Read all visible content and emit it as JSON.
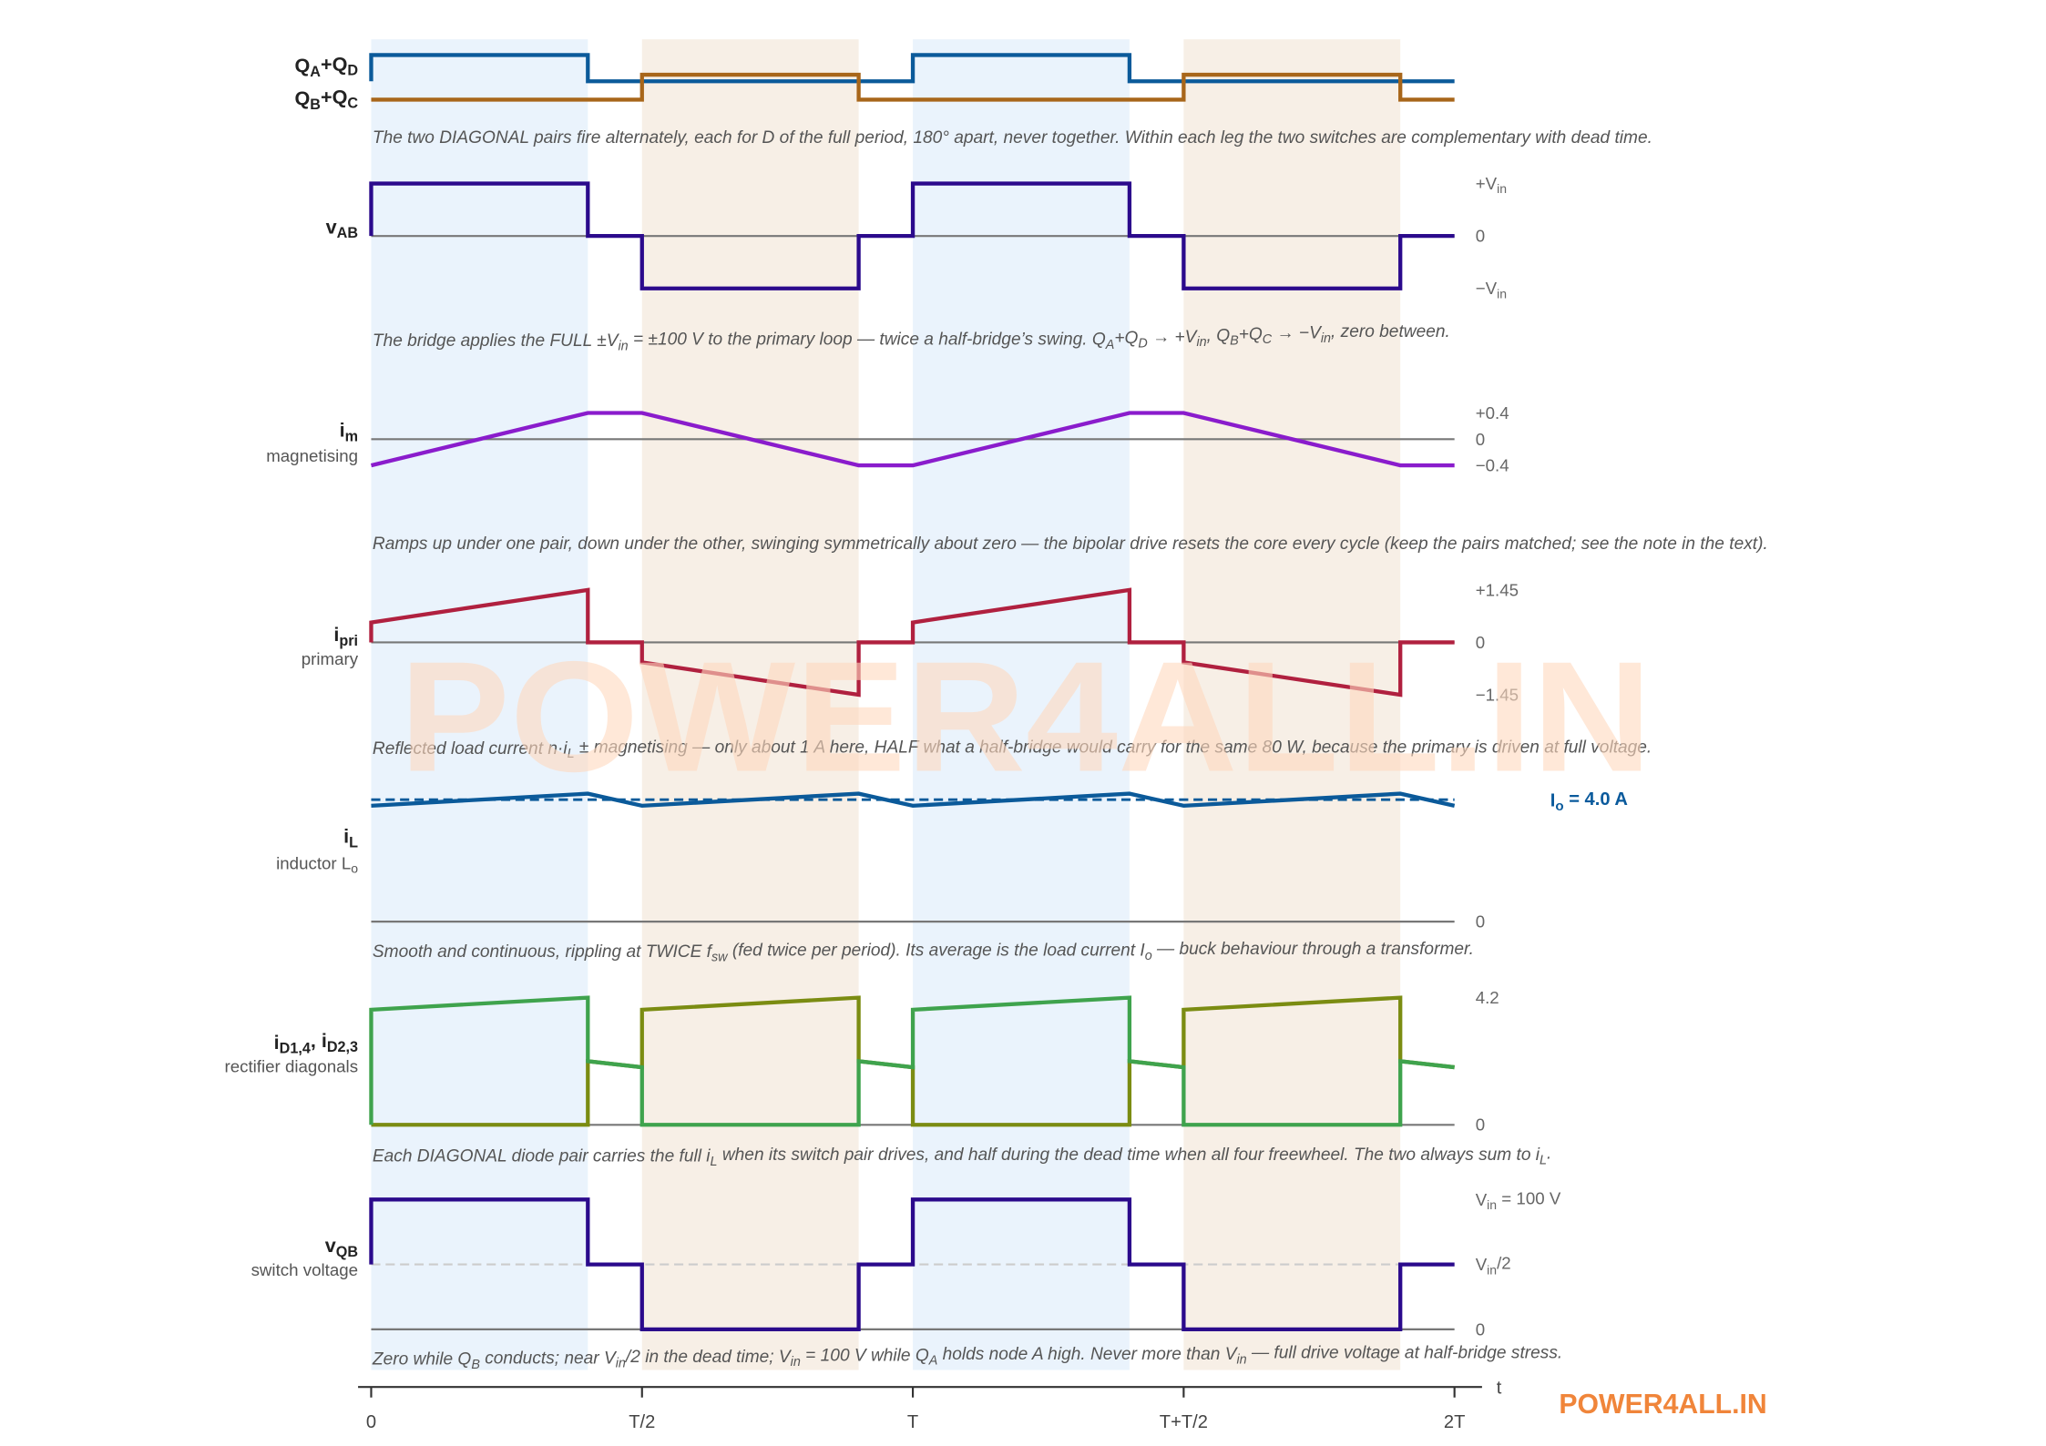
{
  "chart_data": {
    "type": "line",
    "x_unit": "T",
    "xlim": [
      0,
      2
    ],
    "x_ticks": [
      {
        "x": 0,
        "label": "0"
      },
      {
        "x": 0.5,
        "label": "T/2"
      },
      {
        "x": 1,
        "label": "T"
      },
      {
        "x": 1.5,
        "label": "T+T/2"
      },
      {
        "x": 2,
        "label": "2T"
      }
    ],
    "xlabel": "t",
    "shaded_intervals": [
      {
        "from": 0,
        "to": 0.4,
        "color": "#eaf3fc"
      },
      {
        "from": 0.5,
        "to": 0.9,
        "color": "#f7efe6"
      },
      {
        "from": 1,
        "to": 1.4,
        "color": "#eaf3fc"
      },
      {
        "from": 1.5,
        "to": 1.9,
        "color": "#f7efe6"
      }
    ],
    "panels": {
      "gate": {
        "labels": [
          [
            {
              "t": "Q"
            },
            {
              "t": "A",
              "sub": true
            },
            {
              "t": "+Q"
            },
            {
              "t": "D",
              "sub": true
            }
          ],
          [
            {
              "t": "Q"
            },
            {
              "t": "B",
              "sub": true
            },
            {
              "t": "+Q"
            },
            {
              "t": "C",
              "sub": true
            }
          ]
        ],
        "caption": [
          {
            "t": "The two DIAGONAL pairs fire alternately, each for D of the full period, 180° apart, never together. Within each leg the two switches are complementary with dead time."
          }
        ],
        "series": [
          {
            "color": "#0b5a9a",
            "points": [
              [
                0,
                0
              ],
              [
                0,
                1
              ],
              [
                0.4,
                1
              ],
              [
                0.4,
                0
              ],
              [
                1,
                0
              ],
              [
                1,
                1
              ],
              [
                1.4,
                1
              ],
              [
                1.4,
                0
              ],
              [
                2,
                0
              ]
            ]
          },
          {
            "color": "#a8661a",
            "points": [
              [
                0,
                0
              ],
              [
                0.5,
                0
              ],
              [
                0.5,
                1
              ],
              [
                0.9,
                1
              ],
              [
                0.9,
                0
              ],
              [
                1.5,
                0
              ],
              [
                1.5,
                1
              ],
              [
                1.9,
                1
              ],
              [
                1.9,
                0
              ],
              [
                2,
                0
              ]
            ]
          }
        ]
      },
      "vab": {
        "label": [
          {
            "t": "v"
          },
          {
            "t": "AB",
            "sub": true
          }
        ],
        "caption": [
          {
            "t": "The bridge applies the FULL ±V"
          },
          {
            "t": "in",
            "sub": true
          },
          {
            "t": " = ±100 V to the primary loop — twice a half-bridge’s swing. Q"
          },
          {
            "t": "A",
            "sub": true
          },
          {
            "t": "+Q"
          },
          {
            "t": "D",
            "sub": true
          },
          {
            "t": " → +V"
          },
          {
            "t": "in",
            "sub": true
          },
          {
            "t": ", Q"
          },
          {
            "t": "B",
            "sub": true
          },
          {
            "t": "+Q"
          },
          {
            "t": "C",
            "sub": true
          },
          {
            "t": " → −V"
          },
          {
            "t": "in",
            "sub": true
          },
          {
            "t": ", zero between."
          }
        ],
        "ticks": [
          {
            "v": 100,
            "text": [
              {
                "t": "+V"
              },
              {
                "t": "in",
                "sub": true
              }
            ]
          },
          {
            "v": 0,
            "text": [
              {
                "t": "0"
              }
            ]
          },
          {
            "v": -100,
            "text": [
              {
                "t": "−V"
              },
              {
                "t": "in",
                "sub": true
              }
            ]
          }
        ],
        "series": [
          {
            "color": "#2b0a8c",
            "points": [
              [
                0,
                0
              ],
              [
                0,
                100
              ],
              [
                0.4,
                100
              ],
              [
                0.4,
                0
              ],
              [
                0.5,
                0
              ],
              [
                0.5,
                -100
              ],
              [
                0.9,
                -100
              ],
              [
                0.9,
                0
              ],
              [
                1,
                0
              ],
              [
                1,
                100
              ],
              [
                1.4,
                100
              ],
              [
                1.4,
                0
              ],
              [
                1.5,
                0
              ],
              [
                1.5,
                -100
              ],
              [
                1.9,
                -100
              ],
              [
                1.9,
                0
              ],
              [
                2,
                0
              ]
            ]
          }
        ]
      },
      "im": {
        "label": [
          {
            "t": "i"
          },
          {
            "t": "m",
            "sub": true
          }
        ],
        "sublabel": [
          {
            "t": "magnetising"
          }
        ],
        "caption": [
          {
            "t": "Ramps up under one pair, down under the other, swinging symmetrically about zero — the bipolar drive resets the core every cycle (keep the pairs matched; see the note in the text)."
          }
        ],
        "ticks": [
          {
            "v": 0.4,
            "text": [
              {
                "t": "+0.4"
              }
            ]
          },
          {
            "v": 0,
            "text": [
              {
                "t": "0"
              }
            ]
          },
          {
            "v": -0.4,
            "text": [
              {
                "t": "−0.4"
              }
            ]
          }
        ],
        "series": [
          {
            "color": "#8a1ccc",
            "points": [
              [
                0,
                -0.4
              ],
              [
                0.4,
                0.4
              ],
              [
                0.5,
                0.4
              ],
              [
                0.9,
                -0.4
              ],
              [
                1,
                -0.4
              ],
              [
                1.4,
                0.4
              ],
              [
                1.5,
                0.4
              ],
              [
                1.9,
                -0.4
              ],
              [
                2,
                -0.4
              ]
            ]
          }
        ]
      },
      "ipri": {
        "label": [
          {
            "t": "i"
          },
          {
            "t": "pri",
            "sub": true
          }
        ],
        "sublabel": [
          {
            "t": "primary"
          }
        ],
        "caption": [
          {
            "t": "Reflected load current n·i"
          },
          {
            "t": "L",
            "sub": true
          },
          {
            "t": " ± magnetising — only about 1 A here, HALF what a half-bridge would carry for the same 80 W, because the primary is driven at full voltage."
          }
        ],
        "ticks": [
          {
            "v": 1.45,
            "text": [
              {
                "t": "+1.45"
              }
            ]
          },
          {
            "v": 0,
            "text": [
              {
                "t": "0"
              }
            ]
          },
          {
            "v": -1.45,
            "text": [
              {
                "t": "−1.45"
              }
            ]
          }
        ],
        "series": [
          {
            "color": "#b0203f",
            "points": [
              [
                0,
                0
              ],
              [
                0,
                0.55
              ],
              [
                0.4,
                1.45
              ],
              [
                0.4,
                0
              ],
              [
                0.5,
                0
              ],
              [
                0.5,
                -0.55
              ],
              [
                0.9,
                -1.45
              ],
              [
                0.9,
                0
              ],
              [
                1,
                0
              ],
              [
                1,
                0.55
              ],
              [
                1.4,
                1.45
              ],
              [
                1.4,
                0
              ],
              [
                1.5,
                0
              ],
              [
                1.5,
                -0.55
              ],
              [
                1.9,
                -1.45
              ],
              [
                1.9,
                0
              ],
              [
                2,
                0
              ]
            ]
          }
        ]
      },
      "il": {
        "label": [
          {
            "t": "i"
          },
          {
            "t": "L",
            "sub": true
          }
        ],
        "sublabel": [
          {
            "t": "inductor L"
          },
          {
            "t": "o",
            "sub": true
          }
        ],
        "caption": [
          {
            "t": "Smooth and continuous, rippling at TWICE f"
          },
          {
            "t": "sw",
            "sub": true
          },
          {
            "t": " (fed twice per period). Its average is the load current I"
          },
          {
            "t": "o",
            "sub": true
          },
          {
            "t": " — buck behaviour through a transformer."
          }
        ],
        "ticks": [
          {
            "v": 0,
            "text": [
              {
                "t": "0"
              }
            ]
          }
        ],
        "average": {
          "v": 4.0,
          "text": [
            {
              "t": "I"
            },
            {
              "t": "o",
              "sub": true
            },
            {
              "t": " = 4.0 A"
            }
          ],
          "color": "#0b5a9a"
        },
        "series": [
          {
            "color": "#0b5a9a",
            "points": [
              [
                0,
                3.8
              ],
              [
                0.4,
                4.2
              ],
              [
                0.5,
                3.8
              ],
              [
                0.9,
                4.2
              ],
              [
                1,
                3.8
              ],
              [
                1.4,
                4.2
              ],
              [
                1.5,
                3.8
              ],
              [
                1.9,
                4.2
              ],
              [
                2,
                3.8
              ]
            ]
          }
        ]
      },
      "id": {
        "label": [
          {
            "t": "i"
          },
          {
            "t": "D1,4",
            "sub": true
          },
          {
            "t": ", i"
          },
          {
            "t": "D2,3",
            "sub": true
          }
        ],
        "sublabel": [
          {
            "t": "rectifier diagonals"
          }
        ],
        "caption": [
          {
            "t": "Each DIAGONAL diode pair carries the full i"
          },
          {
            "t": "L",
            "sub": true
          },
          {
            "t": " when its switch pair drives, and half during the dead time when all four freewheel. The two always sum to i"
          },
          {
            "t": "L",
            "sub": true
          },
          {
            "t": "."
          }
        ],
        "ticks": [
          {
            "v": 4.2,
            "text": [
              {
                "t": "4.2"
              }
            ]
          },
          {
            "v": 0,
            "text": [
              {
                "t": "0"
              }
            ]
          }
        ],
        "series": [
          {
            "color": "#7b8c12",
            "points": [
              [
                0,
                0
              ],
              [
                0.4,
                0
              ],
              [
                0.4,
                2.1
              ],
              [
                0.5,
                1.9
              ],
              [
                0.5,
                3.8
              ],
              [
                0.9,
                4.2
              ],
              [
                0.9,
                2.1
              ],
              [
                1,
                1.9
              ],
              [
                1,
                0
              ],
              [
                1.4,
                0
              ],
              [
                1.4,
                2.1
              ],
              [
                1.5,
                1.9
              ],
              [
                1.5,
                3.8
              ],
              [
                1.9,
                4.2
              ],
              [
                1.9,
                2.1
              ],
              [
                2,
                1.9
              ]
            ]
          },
          {
            "color": "#3fa34d",
            "points": [
              [
                0,
                0
              ],
              [
                0,
                3.8
              ],
              [
                0.4,
                4.2
              ],
              [
                0.4,
                2.1
              ],
              [
                0.5,
                1.9
              ],
              [
                0.5,
                0
              ],
              [
                0.9,
                0
              ],
              [
                0.9,
                2.1
              ],
              [
                1,
                1.9
              ],
              [
                1,
                3.8
              ],
              [
                1.4,
                4.2
              ],
              [
                1.4,
                2.1
              ],
              [
                1.5,
                1.9
              ],
              [
                1.5,
                0
              ],
              [
                1.9,
                0
              ],
              [
                1.9,
                2.1
              ],
              [
                2,
                1.9
              ]
            ]
          }
        ]
      },
      "vqb": {
        "label": [
          {
            "t": "v"
          },
          {
            "t": "QB",
            "sub": true
          }
        ],
        "sublabel": [
          {
            "t": "switch voltage"
          }
        ],
        "caption": [
          {
            "t": "Zero while Q"
          },
          {
            "t": "B",
            "sub": true
          },
          {
            "t": " conducts; near V"
          },
          {
            "t": "in",
            "sub": true
          },
          {
            "t": "/2 in the dead time; V"
          },
          {
            "t": "in",
            "sub": true
          },
          {
            "t": " = 100 V while Q"
          },
          {
            "t": "A",
            "sub": true
          },
          {
            "t": " holds node A high. Never more than V"
          },
          {
            "t": "in",
            "sub": true
          },
          {
            "t": " — full drive voltage at half-bridge stress."
          }
        ],
        "ticks": [
          {
            "v": 100,
            "text": [
              {
                "t": "V"
              },
              {
                "t": "in",
                "sub": true
              },
              {
                "t": " = 100 V"
              }
            ]
          },
          {
            "v": 50,
            "text": [
              {
                "t": "V"
              },
              {
                "t": "in",
                "sub": true
              },
              {
                "t": "/2"
              }
            ]
          },
          {
            "v": 0,
            "text": [
              {
                "t": "0"
              }
            ]
          }
        ],
        "reference": {
          "v": 50,
          "color": "#cccccc"
        },
        "series": [
          {
            "color": "#2b0a8c",
            "points": [
              [
                0,
                50
              ],
              [
                0,
                100
              ],
              [
                0.4,
                100
              ],
              [
                0.4,
                50
              ],
              [
                0.5,
                50
              ],
              [
                0.5,
                0
              ],
              [
                0.9,
                0
              ],
              [
                0.9,
                50
              ],
              [
                1,
                50
              ],
              [
                1,
                100
              ],
              [
                1.4,
                100
              ],
              [
                1.4,
                50
              ],
              [
                1.5,
                50
              ],
              [
                1.5,
                0
              ],
              [
                1.9,
                0
              ],
              [
                1.9,
                50
              ],
              [
                2,
                50
              ]
            ]
          }
        ]
      }
    }
  },
  "watermark": "POWER4ALL.IN",
  "brand": "POWER4ALL.IN",
  "colors": {
    "baseline": "#777777",
    "axis": "#333333",
    "brand": "#f0853a"
  }
}
